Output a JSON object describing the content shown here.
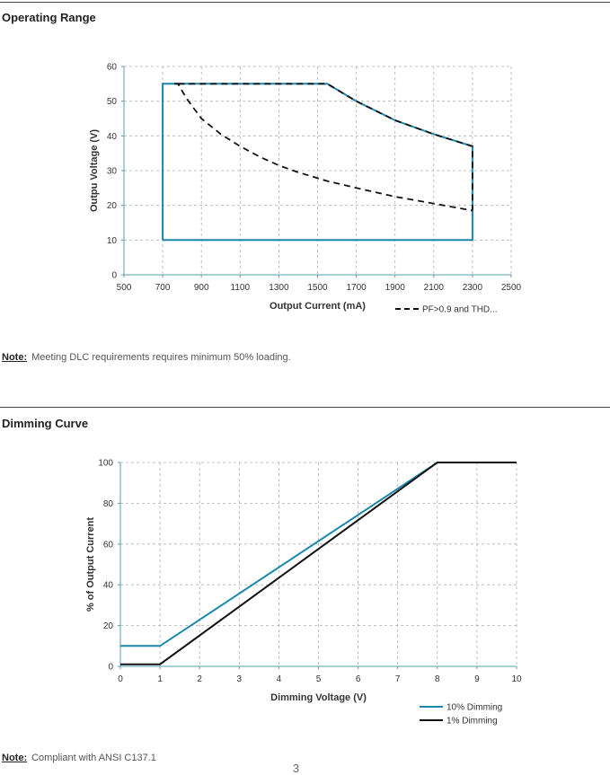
{
  "operating_range": {
    "title": "Operating Range",
    "note_label": "Note:",
    "note_text": "Meeting DLC requirements requires minimum 50% loading."
  },
  "dimming_curve": {
    "title": "Dimming Curve",
    "note_label": "Note:",
    "note_text": "Compliant with ANSI C137.1"
  },
  "page_number": "3",
  "colors": {
    "blue": "#1b86ab",
    "black": "#111111",
    "grid": "#b0b0b0",
    "axis": "#5a9bb5"
  },
  "chart_data": [
    {
      "type": "line",
      "xlabel": "Output Current (mA)",
      "ylabel": "Outpu Voltage (V)",
      "xlim": [
        500,
        2500
      ],
      "ylim": [
        0,
        60
      ],
      "xticks": [
        500,
        700,
        900,
        1100,
        1300,
        1500,
        1700,
        1900,
        2100,
        2300,
        2500
      ],
      "yticks": [
        0,
        10,
        20,
        30,
        40,
        50,
        60
      ],
      "grid": true,
      "legend_position": "bottom-right",
      "series": [
        {
          "style": "solid",
          "color": "#1b86ab",
          "x": [
            700,
            700,
            1550,
            1700,
            1900,
            2100,
            2300,
            2300,
            700
          ],
          "y": [
            10,
            55,
            55,
            50,
            44.5,
            40.5,
            37,
            10,
            10
          ]
        },
        {
          "name": "PF>0.9 and THD...",
          "style": "dashed",
          "color": "#111111",
          "x": [
            760,
            780,
            820,
            900,
            1000,
            1100,
            1200,
            1300,
            1400,
            1550,
            1700,
            1900,
            2100,
            2300
          ],
          "y": [
            55,
            55,
            51,
            45,
            40.5,
            37,
            34,
            31.5,
            29.5,
            27,
            25,
            22.5,
            20.5,
            18.5
          ]
        },
        {
          "style": "dashed",
          "color": "#111111",
          "x": [
            780,
            1550,
            1700,
            1900,
            2100,
            2300,
            2300
          ],
          "y": [
            55,
            55,
            50,
            44.5,
            40.5,
            37,
            18.5
          ]
        }
      ]
    },
    {
      "type": "line",
      "xlabel": "Dimming Voltage (V)",
      "ylabel": "% of Output Current",
      "xlim": [
        0,
        10
      ],
      "ylim": [
        0,
        100
      ],
      "xticks": [
        0,
        1,
        2,
        3,
        4,
        5,
        6,
        7,
        8,
        9,
        10
      ],
      "yticks": [
        0,
        20,
        40,
        60,
        80,
        100
      ],
      "grid": true,
      "legend_position": "bottom-right",
      "series": [
        {
          "name": "10% Dimming",
          "color": "#1b86ab",
          "style": "solid",
          "x": [
            0,
            1,
            8,
            10
          ],
          "y": [
            10,
            10,
            100,
            100
          ]
        },
        {
          "name": "1% Dimming",
          "color": "#111111",
          "style": "solid",
          "x": [
            0,
            1,
            8,
            10
          ],
          "y": [
            1,
            1,
            100,
            100
          ]
        }
      ]
    }
  ]
}
